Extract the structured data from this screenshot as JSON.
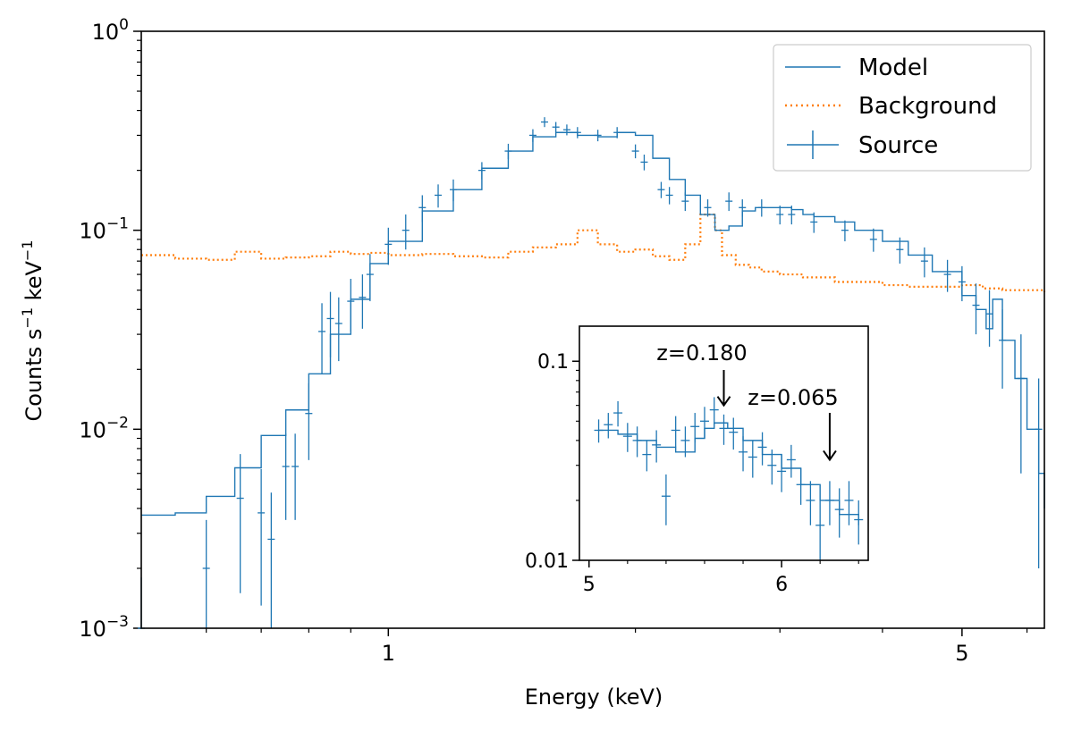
{
  "chart_data": {
    "type": "line",
    "xscale": "log",
    "yscale": "log",
    "xlabel": "Energy (keV)",
    "ylabel": "Counts s",
    "ylabel_sup1": "−1",
    "ylabel_mid": " keV",
    "ylabel_sup2": "−1",
    "xlim": [
      0.5,
      6.3
    ],
    "ylim": [
      0.001,
      1
    ],
    "x_ticks": [
      {
        "value": 1,
        "label": "1"
      },
      {
        "value": 5,
        "label": "5"
      }
    ],
    "y_ticks": [
      {
        "value": 1,
        "base": "10",
        "exp": "0"
      },
      {
        "value": 0.1,
        "base": "10",
        "exp": "−1"
      },
      {
        "value": 0.01,
        "base": "10",
        "exp": "−2"
      },
      {
        "value": 0.001,
        "base": "10",
        "exp": "−3"
      }
    ],
    "legend": {
      "position": "top-right",
      "entries": [
        {
          "label": "Model",
          "style": "line",
          "color": "#1f77b4"
        },
        {
          "label": "Background",
          "style": "dotted",
          "color": "#ff7f0e"
        },
        {
          "label": "Source",
          "style": "errorbar",
          "color": "#1f77b4"
        }
      ]
    },
    "series": [
      {
        "name": "Model",
        "color": "#1f77b4",
        "x": [
          0.5,
          0.55,
          0.6,
          0.65,
          0.7,
          0.75,
          0.8,
          0.85,
          0.9,
          0.95,
          1.0,
          1.1,
          1.2,
          1.3,
          1.4,
          1.5,
          1.6,
          1.7,
          1.8,
          1.9,
          2.0,
          2.1,
          2.2,
          2.3,
          2.4,
          2.5,
          2.6,
          2.7,
          2.8,
          2.9,
          3.0,
          3.1,
          3.2,
          3.3,
          3.5,
          3.7,
          4.0,
          4.3,
          4.6,
          5.0,
          5.2,
          5.35,
          5.45,
          5.6,
          5.8,
          6.0,
          6.2,
          6.3
        ],
        "y": [
          0.0037,
          0.0038,
          0.0046,
          0.0064,
          0.0093,
          0.0125,
          0.019,
          0.03,
          0.045,
          0.068,
          0.088,
          0.125,
          0.16,
          0.205,
          0.25,
          0.295,
          0.31,
          0.3,
          0.295,
          0.31,
          0.3,
          0.23,
          0.18,
          0.15,
          0.12,
          0.1,
          0.105,
          0.125,
          0.13,
          0.13,
          0.13,
          0.127,
          0.12,
          0.117,
          0.11,
          0.1,
          0.088,
          0.075,
          0.062,
          0.047,
          0.04,
          0.032,
          0.045,
          0.028,
          0.018,
          0.01,
          0.006,
          0.004
        ]
      },
      {
        "name": "Background",
        "color": "#ff7f0e",
        "x": [
          0.5,
          0.55,
          0.6,
          0.65,
          0.7,
          0.75,
          0.8,
          0.85,
          0.9,
          0.95,
          1.0,
          1.1,
          1.2,
          1.3,
          1.4,
          1.5,
          1.6,
          1.7,
          1.75,
          1.8,
          1.9,
          2.0,
          2.1,
          2.2,
          2.3,
          2.4,
          2.5,
          2.55,
          2.65,
          2.75,
          2.85,
          3.0,
          3.2,
          3.5,
          3.8,
          4.0,
          4.3,
          4.6,
          5.0,
          5.3,
          5.6,
          6.0,
          6.3
        ],
        "y": [
          0.075,
          0.072,
          0.071,
          0.078,
          0.072,
          0.073,
          0.074,
          0.078,
          0.076,
          0.077,
          0.075,
          0.076,
          0.074,
          0.073,
          0.078,
          0.082,
          0.085,
          0.1,
          0.1,
          0.085,
          0.078,
          0.08,
          0.074,
          0.071,
          0.085,
          0.12,
          0.1,
          0.075,
          0.067,
          0.065,
          0.062,
          0.06,
          0.058,
          0.055,
          0.055,
          0.053,
          0.052,
          0.052,
          0.053,
          0.051,
          0.05,
          0.05,
          0.049
        ]
      },
      {
        "name": "Source",
        "color": "#1f77b4",
        "x": [
          0.5,
          0.6,
          0.66,
          0.7,
          0.72,
          0.75,
          0.77,
          0.8,
          0.83,
          0.85,
          0.87,
          0.9,
          0.93,
          0.95,
          1.0,
          1.05,
          1.1,
          1.15,
          1.2,
          1.3,
          1.4,
          1.5,
          1.55,
          1.6,
          1.65,
          1.7,
          1.8,
          1.9,
          2.0,
          2.05,
          2.15,
          2.2,
          2.3,
          2.45,
          2.6,
          2.7,
          2.85,
          3.0,
          3.1,
          3.3,
          3.6,
          3.9,
          4.2,
          4.5,
          4.8,
          5.0,
          5.2,
          5.4,
          5.6,
          5.9,
          6.2
        ],
        "y": [
          0.001,
          0.002,
          0.0045,
          0.0038,
          0.0028,
          0.0065,
          0.0065,
          0.012,
          0.031,
          0.036,
          0.034,
          0.044,
          0.046,
          0.06,
          0.085,
          0.1,
          0.13,
          0.15,
          0.16,
          0.2,
          0.25,
          0.3,
          0.35,
          0.33,
          0.32,
          0.31,
          0.3,
          0.31,
          0.25,
          0.22,
          0.16,
          0.15,
          0.14,
          0.13,
          0.14,
          0.13,
          0.13,
          0.12,
          0.12,
          0.11,
          0.1,
          0.09,
          0.08,
          0.07,
          0.06,
          0.055,
          0.042,
          0.038,
          0.028,
          0.018,
          0.01
        ],
        "yerr": [
          0.0008,
          0.0015,
          0.003,
          0.0025,
          0.002,
          0.003,
          0.003,
          0.005,
          0.012,
          0.013,
          0.012,
          0.013,
          0.014,
          0.016,
          0.018,
          0.02,
          0.02,
          0.02,
          0.02,
          0.02,
          0.022,
          0.022,
          0.02,
          0.02,
          0.02,
          0.02,
          0.02,
          0.02,
          0.02,
          0.02,
          0.015,
          0.015,
          0.015,
          0.013,
          0.015,
          0.013,
          0.013,
          0.013,
          0.013,
          0.013,
          0.012,
          0.012,
          0.012,
          0.012,
          0.011,
          0.011,
          0.012,
          0.012,
          0.012,
          0.012,
          0.008
        ]
      }
    ],
    "inset": {
      "xscale": "linear",
      "yscale": "log",
      "xlim": [
        4.95,
        6.45
      ],
      "ylim": [
        0.01,
        0.15
      ],
      "x_ticks": [
        {
          "value": 5,
          "label": "5"
        },
        {
          "value": 6,
          "label": "6"
        }
      ],
      "y_ticks": [
        {
          "value": 0.1,
          "label": "0.1"
        },
        {
          "value": 0.01,
          "label": "0.01"
        }
      ],
      "model": {
        "x": [
          5.05,
          5.15,
          5.25,
          5.35,
          5.45,
          5.55,
          5.6,
          5.65,
          5.72,
          5.8,
          5.9,
          6.0,
          6.1,
          6.2,
          6.3,
          6.4
        ],
        "y": [
          0.045,
          0.043,
          0.04,
          0.037,
          0.035,
          0.041,
          0.046,
          0.049,
          0.046,
          0.04,
          0.034,
          0.029,
          0.024,
          0.02,
          0.017,
          0.015
        ]
      },
      "source": {
        "x": [
          5.05,
          5.1,
          5.15,
          5.2,
          5.25,
          5.3,
          5.35,
          5.4,
          5.45,
          5.5,
          5.55,
          5.6,
          5.65,
          5.7,
          5.75,
          5.8,
          5.85,
          5.9,
          5.95,
          6.0,
          6.05,
          6.1,
          6.15,
          6.2,
          6.25,
          6.3,
          6.35,
          6.4
        ],
        "y": [
          0.045,
          0.048,
          0.055,
          0.042,
          0.04,
          0.034,
          0.038,
          0.021,
          0.045,
          0.04,
          0.047,
          0.05,
          0.057,
          0.046,
          0.044,
          0.035,
          0.033,
          0.037,
          0.03,
          0.028,
          0.032,
          0.024,
          0.02,
          0.015,
          0.02,
          0.018,
          0.02,
          0.016
        ],
        "yerr": [
          0.006,
          0.007,
          0.008,
          0.007,
          0.007,
          0.006,
          0.007,
          0.006,
          0.008,
          0.007,
          0.008,
          0.009,
          0.009,
          0.008,
          0.008,
          0.007,
          0.007,
          0.007,
          0.006,
          0.006,
          0.006,
          0.005,
          0.005,
          0.005,
          0.005,
          0.005,
          0.005,
          0.004
        ]
      },
      "annotations": [
        {
          "text": "z=0.180",
          "energy": 5.7,
          "arrow_tip": 0.06
        },
        {
          "text": "z=0.065",
          "energy": 6.25,
          "arrow_tip": 0.032
        }
      ]
    }
  }
}
